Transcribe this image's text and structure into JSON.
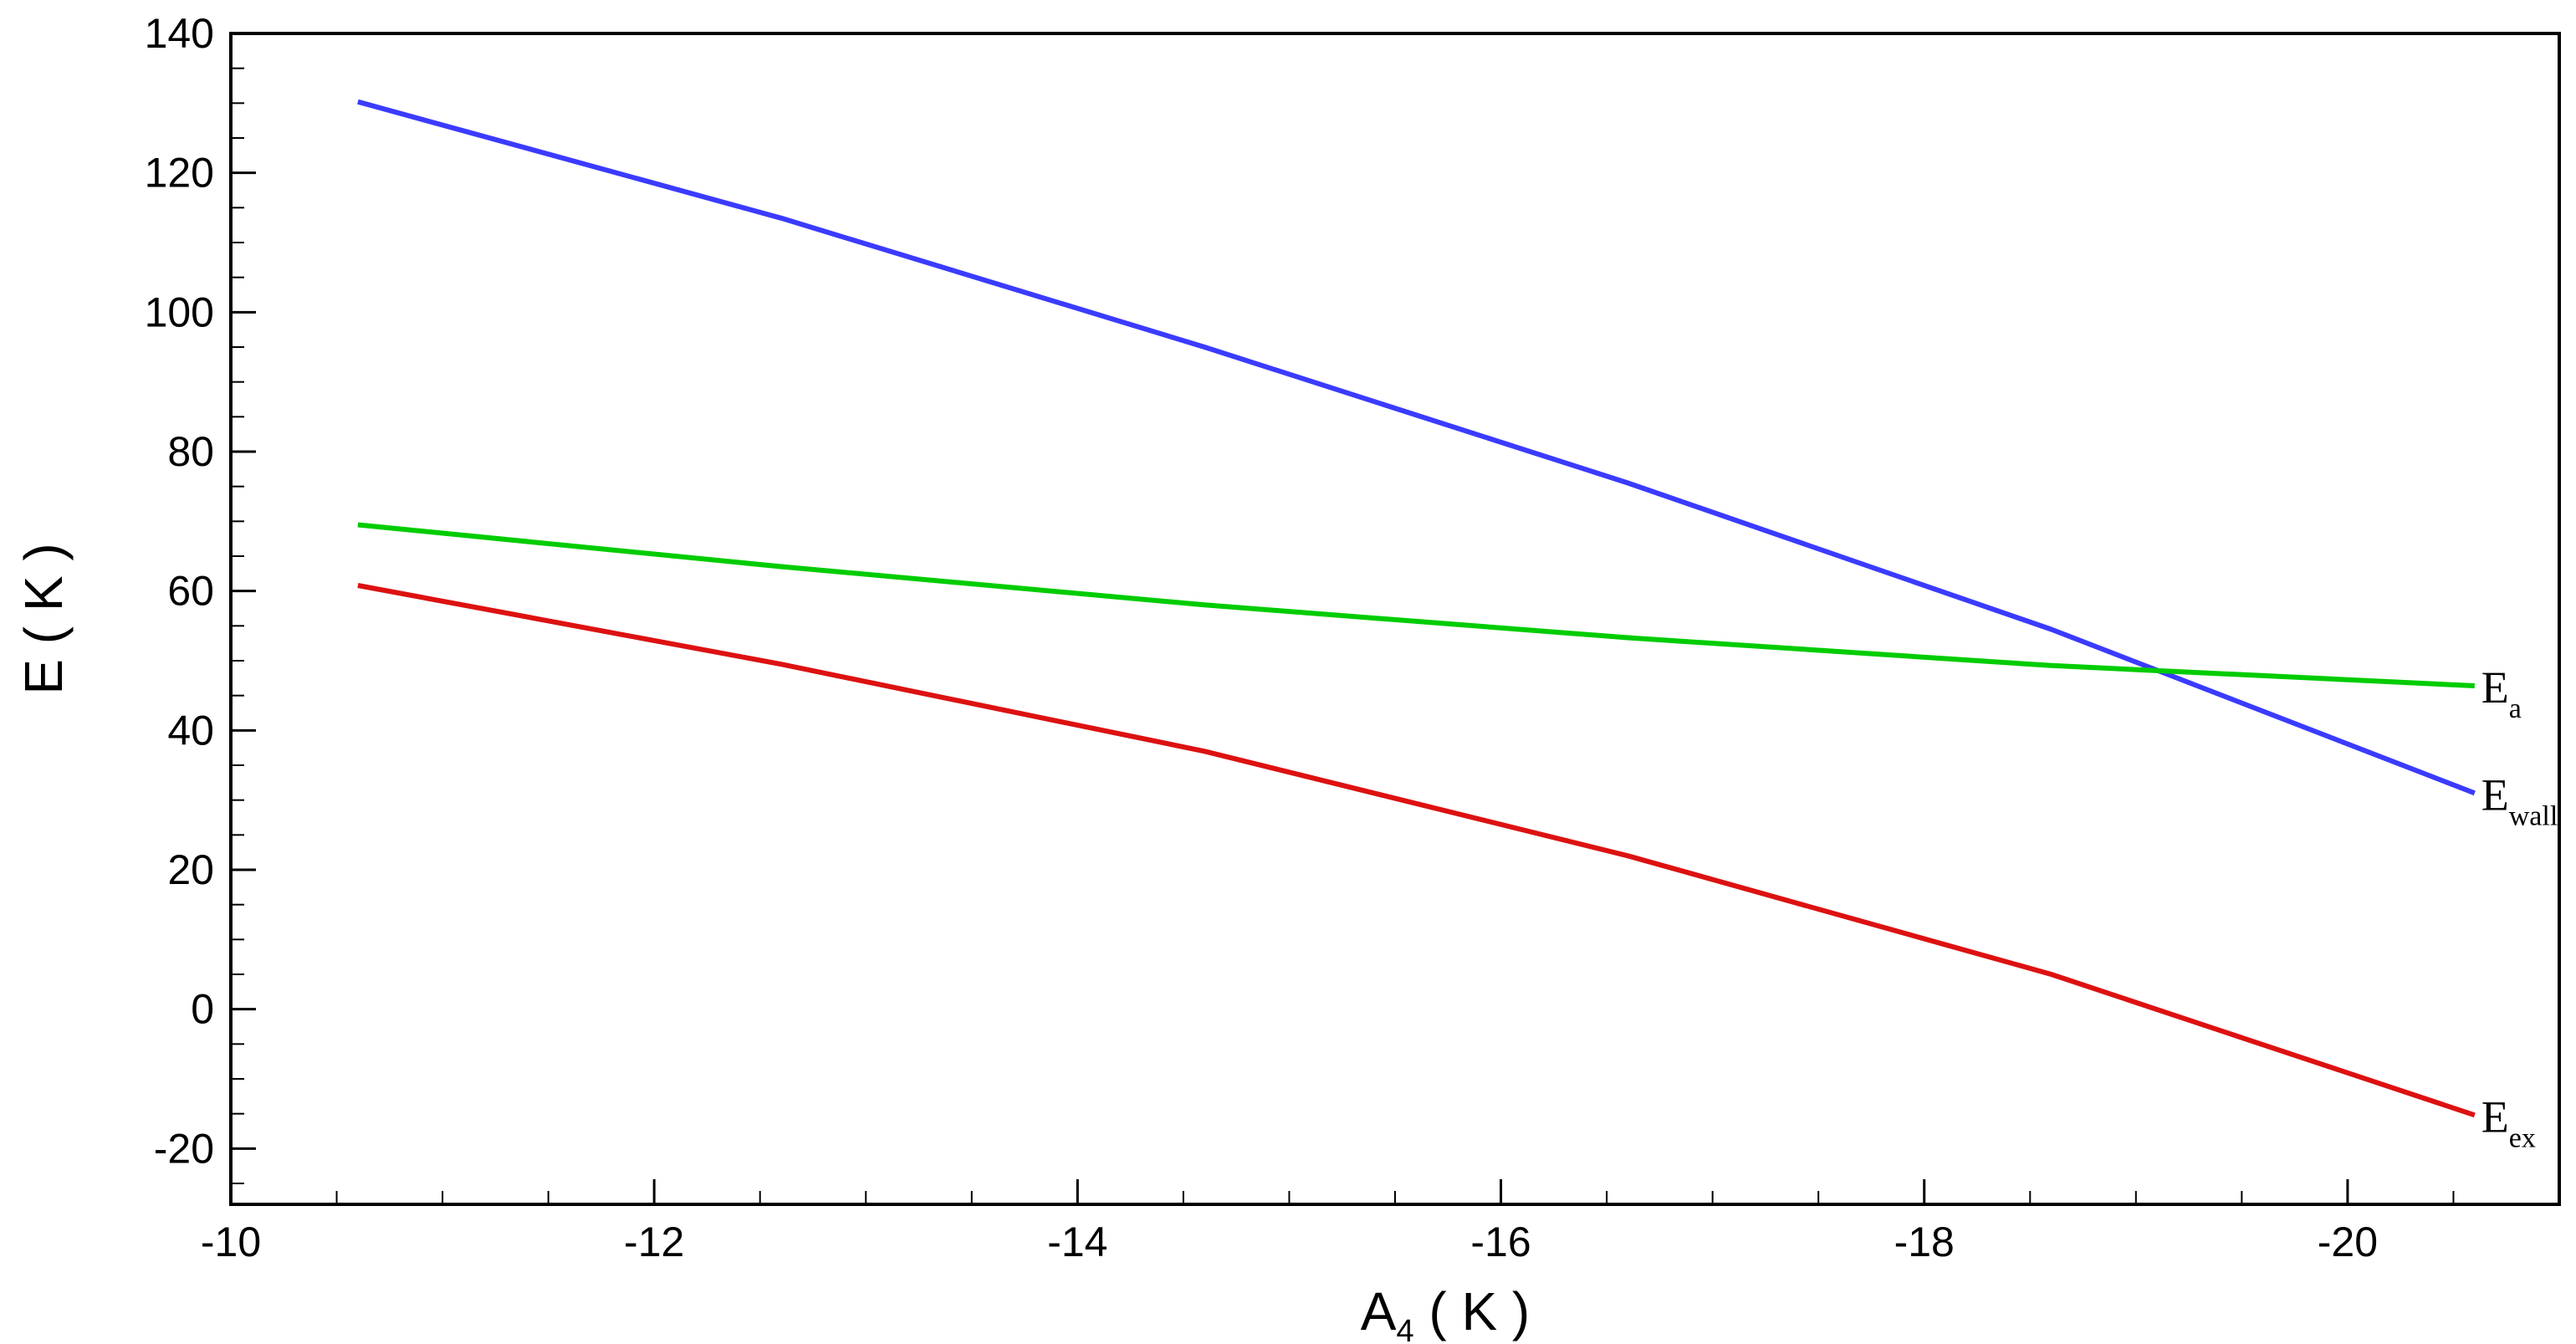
{
  "chart_data": {
    "type": "line",
    "xlabel": {
      "main": "A",
      "sub": "4",
      "unit": "( K )"
    },
    "ylabel": "E ( K )",
    "xlim": [
      -10,
      -21
    ],
    "ylim": [
      -28,
      140
    ],
    "x_ticks": [
      -10,
      -12,
      -14,
      -16,
      -18,
      -20
    ],
    "y_ticks": [
      -20,
      0,
      20,
      40,
      60,
      80,
      100,
      120,
      140
    ],
    "x_tick_labels": [
      "-10",
      "-12",
      "-14",
      "-16",
      "-18",
      "-20"
    ],
    "y_tick_labels": [
      "-20",
      "0",
      "20",
      "40",
      "60",
      "80",
      "100",
      "120",
      "140"
    ],
    "x_minor_step": 0.5,
    "y_minor_step": 5,
    "grid": false,
    "legend": "none (inline labels at right end of each line)",
    "series": [
      {
        "name": "E_wall",
        "label_main": "E",
        "label_sub": "wall",
        "color": "#3b3bff",
        "x": [
          -10.6,
          -12.6,
          -14.6,
          -16.6,
          -18.6,
          -20.6
        ],
        "y": [
          130.2,
          113.5,
          95.0,
          75.5,
          54.5,
          31.0
        ]
      },
      {
        "name": "E_a",
        "label_main": "E",
        "label_sub": "a",
        "color": "#00cc00",
        "x": [
          -10.6,
          -12.6,
          -14.6,
          -16.6,
          -18.6,
          -20.6
        ],
        "y": [
          69.5,
          63.5,
          58.0,
          53.3,
          49.3,
          46.4
        ]
      },
      {
        "name": "E_ex",
        "label_main": "E",
        "label_sub": "ex",
        "color": "#dd1111",
        "x": [
          -10.6,
          -12.6,
          -14.6,
          -16.6,
          -18.6,
          -20.6
        ],
        "y": [
          60.8,
          49.5,
          37.0,
          22.0,
          5.0,
          -15.2
        ]
      }
    ]
  }
}
